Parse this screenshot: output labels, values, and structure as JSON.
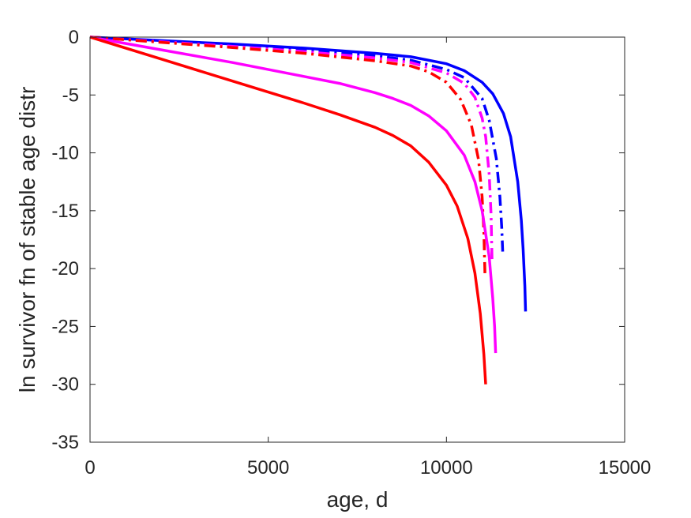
{
  "chart_data": {
    "type": "line",
    "xlabel": "age, d",
    "ylabel": "ln survivor fn of stable age distr",
    "xlim": [
      0,
      15000
    ],
    "ylim": [
      -35,
      0
    ],
    "xticks": [
      0,
      5000,
      10000,
      15000
    ],
    "yticks": [
      0,
      -5,
      -10,
      -15,
      -20,
      -25,
      -30,
      -35
    ],
    "xtick_labels": [
      "0",
      "5000",
      "10000",
      "15000"
    ],
    "ytick_labels": [
      "0",
      "-5",
      "-10",
      "-15",
      "-20",
      "-25",
      "-30",
      "-35"
    ],
    "grid": false,
    "legend": "none",
    "series": [
      {
        "color": "#0000ff",
        "style": "solid",
        "x": [
          0,
          2000,
          4000,
          6000,
          8000,
          9000,
          10000,
          10500,
          11000,
          11300,
          11600,
          11800,
          12000,
          12100,
          12150,
          12200,
          12220
        ],
        "y": [
          0,
          -0.3,
          -0.6,
          -0.95,
          -1.4,
          -1.7,
          -2.3,
          -2.9,
          -3.9,
          -4.9,
          -6.6,
          -8.6,
          -12.5,
          -15.8,
          -18.3,
          -21.5,
          -23.7
        ]
      },
      {
        "color": "#0000ff",
        "style": "dashdot",
        "x": [
          0,
          2000,
          4000,
          6000,
          8000,
          9000,
          10000,
          10500,
          11000,
          11200,
          11400,
          11500,
          11550,
          11580
        ],
        "y": [
          0,
          -0.35,
          -0.7,
          -1.1,
          -1.6,
          -2.0,
          -2.8,
          -3.5,
          -5.3,
          -7.2,
          -10.5,
          -13.8,
          -16.4,
          -18.6
        ]
      },
      {
        "color": "#ff00ff",
        "style": "dashdot",
        "x": [
          0,
          2000,
          4000,
          6000,
          8000,
          9000,
          10000,
          10500,
          10800,
          11000,
          11100,
          11200,
          11250,
          11280
        ],
        "y": [
          0,
          -0.4,
          -0.8,
          -1.25,
          -1.8,
          -2.2,
          -3.1,
          -4.0,
          -5.2,
          -7.0,
          -8.6,
          -11.9,
          -15.3,
          -19.5
        ]
      },
      {
        "color": "#ff0000",
        "style": "dashdot",
        "x": [
          0,
          2000,
          4000,
          6000,
          8000,
          9000,
          9500,
          10000,
          10400,
          10700,
          10900,
          11000,
          11050,
          11080
        ],
        "y": [
          0,
          -0.45,
          -0.9,
          -1.4,
          -2.05,
          -2.5,
          -3.0,
          -3.9,
          -5.4,
          -7.6,
          -10.6,
          -13.8,
          -16.8,
          -20.5
        ]
      },
      {
        "color": "#ff00ff",
        "style": "solid",
        "x": [
          0,
          2000,
          4000,
          6000,
          7000,
          8000,
          8500,
          9000,
          9500,
          10000,
          10500,
          10800,
          11000,
          11200,
          11300,
          11350,
          11380
        ],
        "y": [
          0,
          -1.1,
          -2.2,
          -3.4,
          -4.0,
          -4.8,
          -5.3,
          -5.9,
          -6.8,
          -8.1,
          -10.2,
          -12.5,
          -15.0,
          -19.0,
          -22.6,
          -25.0,
          -27.3
        ]
      },
      {
        "color": "#ff0000",
        "style": "solid",
        "x": [
          0,
          2000,
          4000,
          6000,
          7000,
          8000,
          8500,
          9000,
          9500,
          10000,
          10300,
          10600,
          10800,
          10950,
          11050,
          11100
        ],
        "y": [
          0,
          -1.9,
          -3.8,
          -5.7,
          -6.7,
          -7.8,
          -8.5,
          -9.4,
          -10.8,
          -12.8,
          -14.6,
          -17.4,
          -20.4,
          -23.9,
          -27.4,
          -30.0
        ]
      }
    ]
  }
}
